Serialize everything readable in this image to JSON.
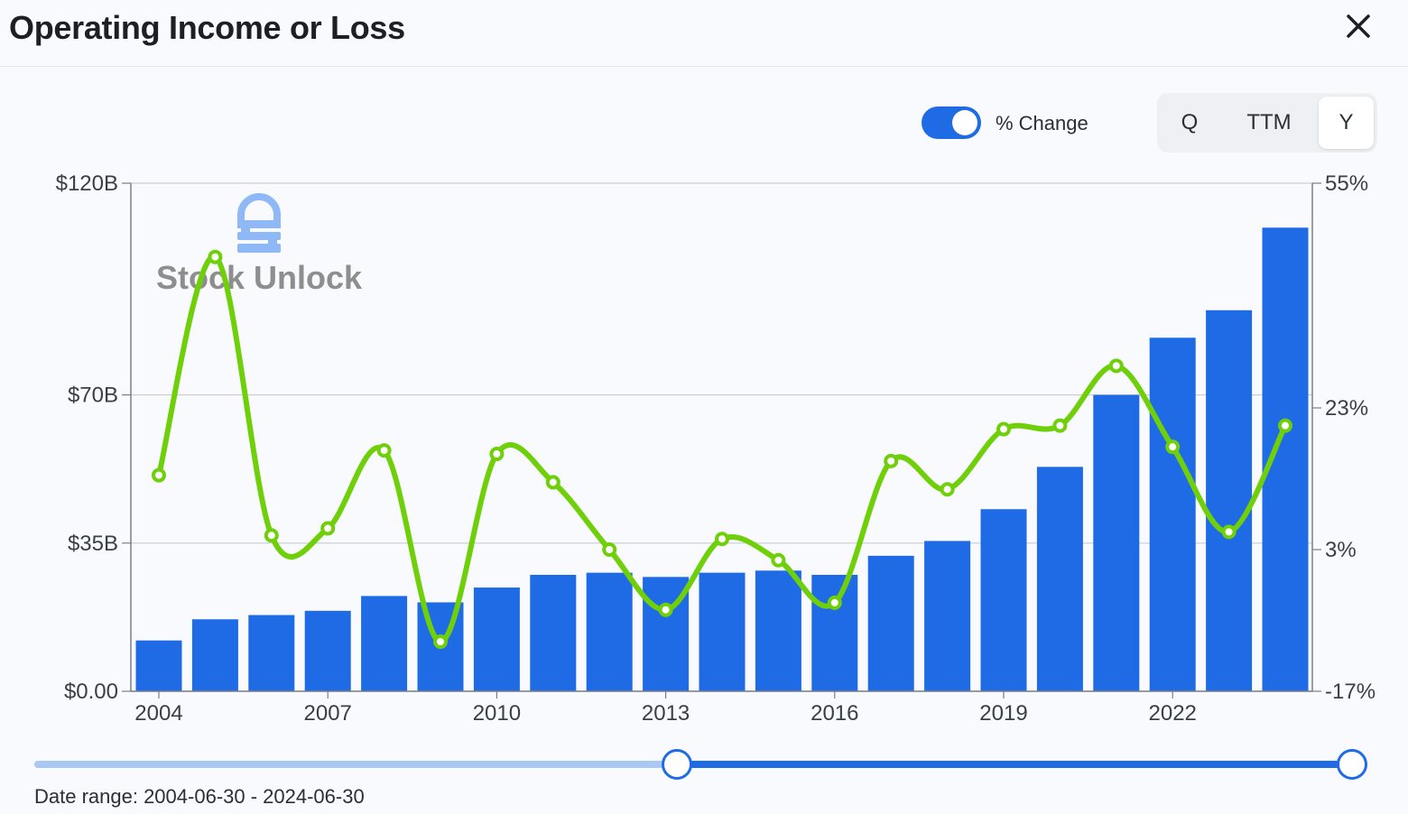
{
  "header": {
    "title": "Operating Income or Loss"
  },
  "controls": {
    "toggle_label": "% Change",
    "toggle_on": true,
    "period_options": [
      "Q",
      "TTM",
      "Y"
    ],
    "selected_period": "Y"
  },
  "watermark": {
    "text": "Stock Unlock"
  },
  "colors": {
    "bar": "#1f6ae5",
    "line": "#6fd00a",
    "accent": "#1f6ae5"
  },
  "chart_data": {
    "type": "bar",
    "x": [
      2004,
      2005,
      2006,
      2007,
      2008,
      2009,
      2010,
      2011,
      2012,
      2013,
      2014,
      2015,
      2016,
      2017,
      2018,
      2019,
      2020,
      2021,
      2022,
      2023,
      2024
    ],
    "x_tick_labels": [
      "2004",
      "2007",
      "2010",
      "2013",
      "2016",
      "2019",
      "2022"
    ],
    "series": [
      {
        "axis": "left",
        "kind": "bar",
        "values": [
          12,
          17,
          18,
          19,
          22.5,
          21,
          24.5,
          27.5,
          28,
          27,
          28,
          28.5,
          27.5,
          32,
          35.5,
          43,
          53,
          70,
          83.5,
          90,
          109.5
        ]
      },
      {
        "axis": "right",
        "kind": "line",
        "values": [
          13.5,
          44.5,
          5,
          6,
          17,
          -10,
          16.5,
          12.5,
          3,
          -5.5,
          4.5,
          1.5,
          -4.5,
          15.5,
          11.5,
          20,
          20.5,
          29,
          17.5,
          5.5,
          20.5
        ]
      }
    ],
    "y_left": {
      "ticks": [
        "$0.00",
        "$35B",
        "$70B",
        "$120B"
      ],
      "tick_values": [
        0,
        35,
        70,
        120
      ],
      "lim": [
        0,
        120
      ]
    },
    "y_right": {
      "ticks": [
        "-17%",
        "3%",
        "23%",
        "55%"
      ],
      "tick_values": [
        -17,
        3,
        23,
        55
      ],
      "lim": [
        -17,
        55
      ]
    },
    "grid": true,
    "title": "Operating Income or Loss"
  },
  "date_range": {
    "label": "Date range: 2004-06-30 - 2024-06-30"
  }
}
